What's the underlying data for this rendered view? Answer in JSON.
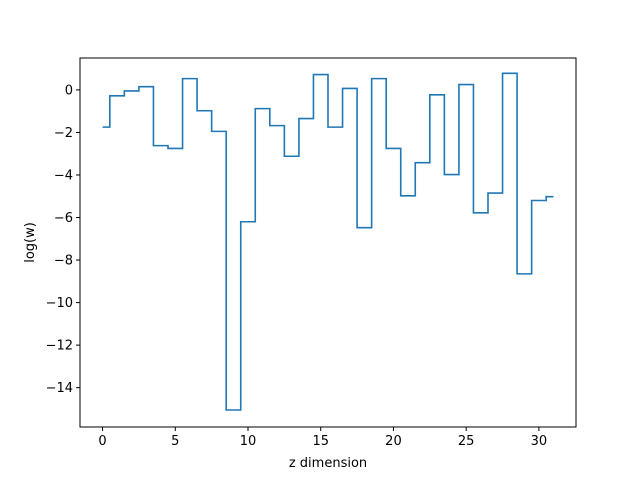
{
  "chart_data": {
    "type": "line",
    "drawstyle": "steps-mid",
    "title": "",
    "xlabel": "z dimension",
    "ylabel": "log(w)",
    "xlim": [
      -1.55,
      32.55
    ],
    "ylim": [
      -15.85,
      1.5
    ],
    "xticks": [
      0,
      5,
      10,
      15,
      20,
      25,
      30
    ],
    "yticks": [
      0,
      -2,
      -4,
      -6,
      -8,
      -10,
      -12,
      -14
    ],
    "grid": false,
    "color": "#1f77b4",
    "series": [
      {
        "x": [
          0,
          1,
          2,
          3,
          4,
          5,
          6,
          7,
          8,
          9,
          10,
          11,
          12,
          13,
          14,
          15,
          16,
          17,
          18,
          19,
          20,
          21,
          22,
          23,
          24,
          25,
          26,
          27,
          28,
          29,
          30,
          31
        ],
        "values": [
          -1.75,
          -0.28,
          -0.05,
          0.15,
          -2.62,
          -2.75,
          0.53,
          -0.98,
          -1.95,
          -15.05,
          -6.2,
          -0.88,
          -1.68,
          -3.12,
          -1.35,
          0.72,
          -1.75,
          0.07,
          -6.48,
          0.53,
          -2.75,
          -4.98,
          -3.42,
          -0.23,
          -3.98,
          0.25,
          -5.78,
          -4.85,
          0.78,
          -8.65,
          -5.2,
          -5.02
        ]
      }
    ]
  }
}
